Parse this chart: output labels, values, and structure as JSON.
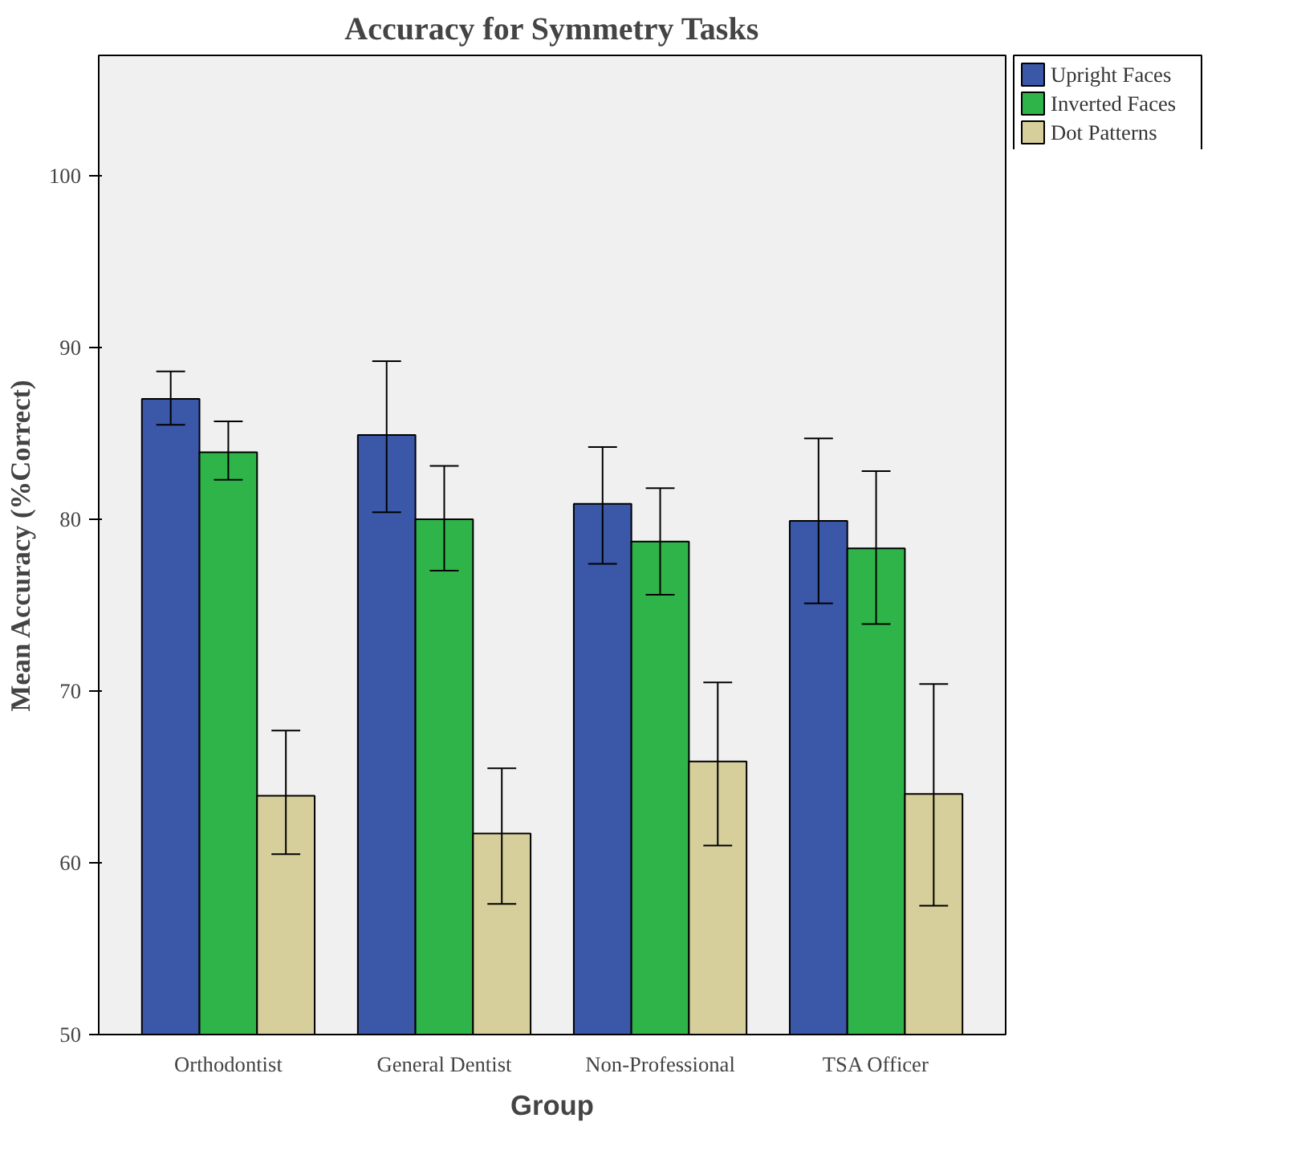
{
  "chart_data": {
    "type": "bar",
    "title": "Accuracy for Symmetry Tasks",
    "xlabel": "Group",
    "ylabel": "Mean Accuracy (%Correct)",
    "categories": [
      "Orthodontist",
      "General Dentist",
      "Non-Professional",
      "TSA Officer"
    ],
    "series": [
      {
        "name": "Upright Faces",
        "color": "#3a57a8",
        "values": [
          87.0,
          84.9,
          80.9,
          79.9
        ],
        "errors": [
          [
            85.5,
            88.6
          ],
          [
            80.4,
            89.2
          ],
          [
            77.4,
            84.2
          ],
          [
            75.1,
            84.7
          ]
        ]
      },
      {
        "name": "Inverted Faces",
        "color": "#2fb44a",
        "values": [
          83.9,
          80.0,
          78.7,
          78.3
        ],
        "errors": [
          [
            82.3,
            85.7
          ],
          [
            77.0,
            83.1
          ],
          [
            75.6,
            81.8
          ],
          [
            73.9,
            82.8
          ]
        ]
      },
      {
        "name": "Dot Patterns",
        "color": "#d6cf9b",
        "values": [
          63.9,
          61.7,
          65.9,
          64.0
        ],
        "errors": [
          [
            60.5,
            67.7
          ],
          [
            57.6,
            65.5
          ],
          [
            61.0,
            70.5
          ],
          [
            57.5,
            70.4
          ]
        ]
      }
    ],
    "ylim": [
      50,
      107
    ],
    "yticks": [
      50,
      60,
      70,
      80,
      90,
      100
    ],
    "grid": false,
    "legend": "top right"
  }
}
